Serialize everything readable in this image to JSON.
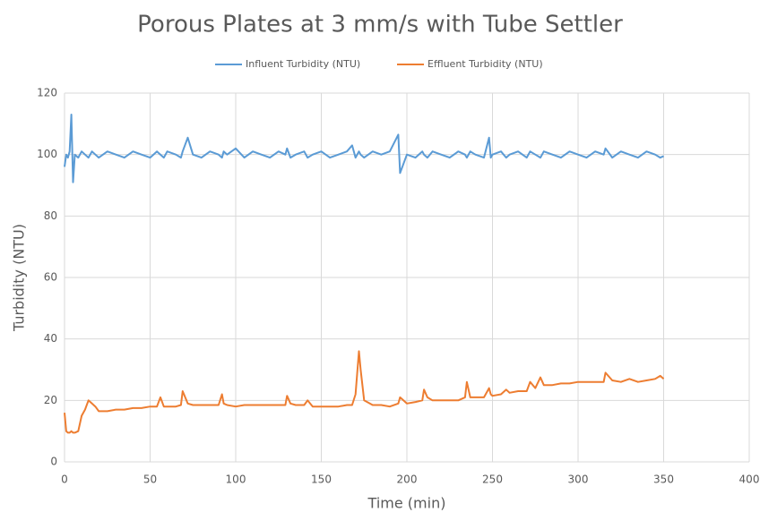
{
  "chart_data": {
    "type": "line",
    "title": "Porous Plates at 3 mm/s  with Tube Settler",
    "x_label": "Time (min)",
    "y_label": "Turbidity (NTU)",
    "x": [
      0,
      1,
      2,
      3,
      4,
      5,
      6,
      8,
      10,
      12,
      14,
      16,
      18,
      20,
      25,
      30,
      35,
      40,
      45,
      50,
      54,
      56,
      58,
      60,
      65,
      68,
      69,
      72,
      75,
      80,
      85,
      90,
      92,
      93,
      95,
      100,
      105,
      110,
      115,
      120,
      125,
      129,
      130,
      132,
      135,
      140,
      142,
      145,
      150,
      155,
      160,
      165,
      168,
      170,
      172,
      173,
      175,
      180,
      185,
      190,
      195,
      196,
      200,
      205,
      209,
      210,
      212,
      215,
      220,
      225,
      230,
      234,
      235,
      237,
      240,
      245,
      248,
      249,
      250,
      255,
      258,
      260,
      265,
      270,
      272,
      275,
      278,
      280,
      285,
      290,
      295,
      300,
      305,
      310,
      315,
      316,
      320,
      325,
      330,
      335,
      340,
      345,
      348,
      350
    ],
    "series": [
      {
        "name": "Influent Turbidity (NTU)",
        "color": "#5b9bd5",
        "values": [
          96,
          100,
          99,
          101,
          113,
          91,
          100,
          99,
          101,
          100,
          99,
          101,
          100,
          99,
          101,
          100,
          99,
          101,
          100,
          99,
          101,
          100,
          99,
          101,
          100,
          99,
          101,
          105.5,
          100,
          99,
          101,
          100,
          99,
          101,
          100,
          102,
          99,
          101,
          100,
          99,
          101,
          100,
          102,
          99,
          100,
          101,
          99,
          100,
          101,
          99,
          100,
          101,
          103,
          99,
          101,
          100,
          99,
          101,
          100,
          101,
          106.5,
          94,
          100,
          99,
          101,
          100,
          99,
          101,
          100,
          99,
          101,
          100,
          99,
          101,
          100,
          99,
          105.5,
          99,
          100,
          101,
          99,
          100,
          101,
          99,
          101,
          100,
          99,
          101,
          100,
          99,
          101,
          100,
          99,
          101,
          100,
          102,
          99,
          101,
          100,
          99,
          101,
          100,
          99,
          99.5
        ]
      },
      {
        "name": "Effluent Turbidity (NTU)",
        "color": "#ed7d31",
        "values": [
          16,
          10,
          9.5,
          9.5,
          10,
          9.5,
          9.5,
          10,
          15,
          17,
          20,
          19,
          18,
          16.5,
          16.5,
          17,
          17,
          17.5,
          17.5,
          18,
          18,
          21,
          18,
          18,
          18,
          18.5,
          23,
          19,
          18.5,
          18.5,
          18.5,
          18.5,
          22,
          19,
          18.5,
          18,
          18.5,
          18.5,
          18.5,
          18.5,
          18.5,
          18.5,
          21.5,
          19,
          18.5,
          18.5,
          20,
          18,
          18,
          18,
          18,
          18.5,
          18.5,
          22,
          36,
          30,
          20,
          18.5,
          18.5,
          18,
          19,
          21,
          19,
          19.5,
          20,
          23.5,
          21,
          20,
          20,
          20,
          20,
          21,
          26,
          21,
          21,
          21,
          24,
          22,
          21.5,
          22,
          23.5,
          22.5,
          23,
          23,
          26,
          24,
          27.5,
          25,
          25,
          25.5,
          25.5,
          26,
          26,
          26,
          26,
          29,
          26.5,
          26,
          27,
          26,
          26.5,
          27,
          28,
          27
        ]
      }
    ],
    "xlim": [
      0,
      400
    ],
    "xticks": [
      0,
      50,
      100,
      150,
      200,
      250,
      300,
      350,
      400
    ],
    "ylim": [
      0,
      120
    ],
    "yticks": [
      0,
      20,
      40,
      60,
      80,
      100,
      120
    ],
    "grid": true,
    "legend": "top"
  }
}
